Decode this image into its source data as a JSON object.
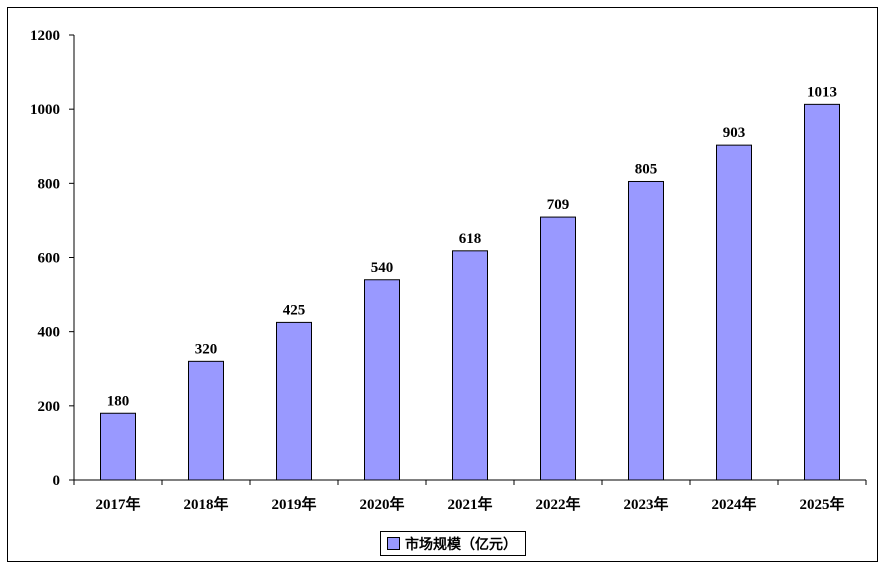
{
  "chart_data": {
    "type": "bar",
    "title": "",
    "xlabel": "",
    "ylabel": "",
    "categories": [
      "2017年",
      "2018年",
      "2019年",
      "2020年",
      "2021年",
      "2022年",
      "2023年",
      "2024年",
      "2025年"
    ],
    "series": [
      {
        "name": "市场规模（亿元）",
        "values": [
          180,
          320,
          425,
          540,
          618,
          709,
          805,
          903,
          1013
        ],
        "color": "#9999ff"
      }
    ],
    "ylim": [
      0,
      1200
    ],
    "yticks": [
      0,
      200,
      400,
      600,
      800,
      1000,
      1200
    ],
    "data_labels": true,
    "grid": false,
    "legend": "bottom"
  }
}
